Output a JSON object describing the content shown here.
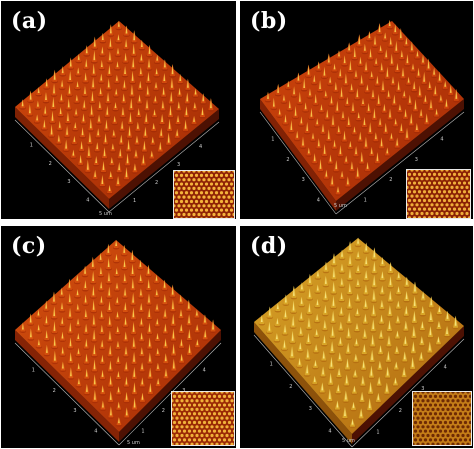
{
  "figure": {
    "panels": [
      {
        "id": "a",
        "label": "(a)",
        "scale_label": "5 um",
        "axis_ticks": [
          "1",
          "2",
          "3",
          "4",
          "1",
          "2",
          "3",
          "4"
        ],
        "surface_colors": {
          "base": "#a02a05",
          "mid": "#d24a0c",
          "peak": "#f6c64a"
        },
        "inset_colors": {
          "base": "#8f2205",
          "dot": "#f4b43c"
        }
      },
      {
        "id": "b",
        "label": "(b)",
        "scale_label": "5 um",
        "axis_ticks": [
          "1",
          "2",
          "3",
          "4",
          "1",
          "2",
          "3",
          "4"
        ],
        "surface_colors": {
          "base": "#a32b06",
          "mid": "#cf460c",
          "peak": "#f5c24a"
        },
        "inset_colors": {
          "base": "#8a2004",
          "dot": "#efae3a"
        }
      },
      {
        "id": "c",
        "label": "(c)",
        "scale_label": "5 um",
        "axis_ticks": [
          "1",
          "2",
          "3",
          "4",
          "1",
          "2",
          "3",
          "4"
        ],
        "surface_colors": {
          "base": "#a62c06",
          "mid": "#d5510e",
          "peak": "#f7c94c"
        },
        "inset_colors": {
          "base": "#9a2905",
          "dot": "#f0b13a"
        }
      },
      {
        "id": "d",
        "label": "(d)",
        "scale_label": "5 um",
        "axis_ticks": [
          "1",
          "2",
          "3",
          "4",
          "1",
          "2",
          "3",
          "4"
        ],
        "surface_colors": {
          "base": "#b0660e",
          "mid": "#d9a628",
          "peak": "#f6e27a"
        },
        "inset_colors": {
          "base": "#c47d18",
          "dot": "#6e2a04"
        }
      }
    ]
  }
}
